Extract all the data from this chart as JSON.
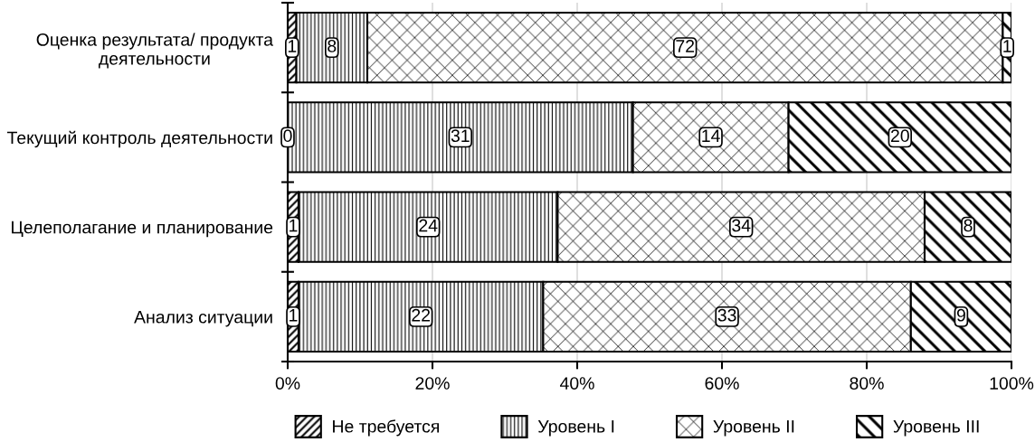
{
  "chart_data": {
    "type": "bar",
    "orientation": "horizontal",
    "stacked": true,
    "categories": [
      "Оценка результата/ продукта деятельности",
      "Текущий контроль деятельности",
      "Целеполагание и планирование",
      "Анализ ситуации"
    ],
    "series": [
      {
        "name": "Не требуется",
        "color": "#000000",
        "values": [
          1.2,
          0,
          1.5,
          1.5
        ]
      },
      {
        "name": "Уровень I",
        "color": "#000000",
        "values": [
          9.8,
          47.7,
          35.8,
          33.8
        ]
      },
      {
        "name": "Уровень II",
        "color": "#000000",
        "values": [
          87.8,
          21.5,
          50.7,
          50.8
        ]
      },
      {
        "name": "Уровень III",
        "color": "#000000",
        "values": [
          1.2,
          30.8,
          12.0,
          13.9
        ]
      }
    ],
    "annotations": [
      "1",
      "8",
      "72",
      "1",
      "0",
      "31",
      "14",
      "20",
      "1",
      "24",
      "34",
      "8",
      "1",
      "22",
      "33",
      "9"
    ],
    "xlim": [
      0,
      100
    ],
    "xticks": [
      {
        "value": 0,
        "label": "0%"
      },
      {
        "value": 20,
        "label": "20%"
      },
      {
        "value": 40,
        "label": "40%"
      },
      {
        "value": 60,
        "label": "60%"
      },
      {
        "value": 80,
        "label": "80%"
      },
      {
        "value": 100,
        "label": "100%"
      }
    ],
    "grid": "x",
    "legend": "bottom"
  }
}
